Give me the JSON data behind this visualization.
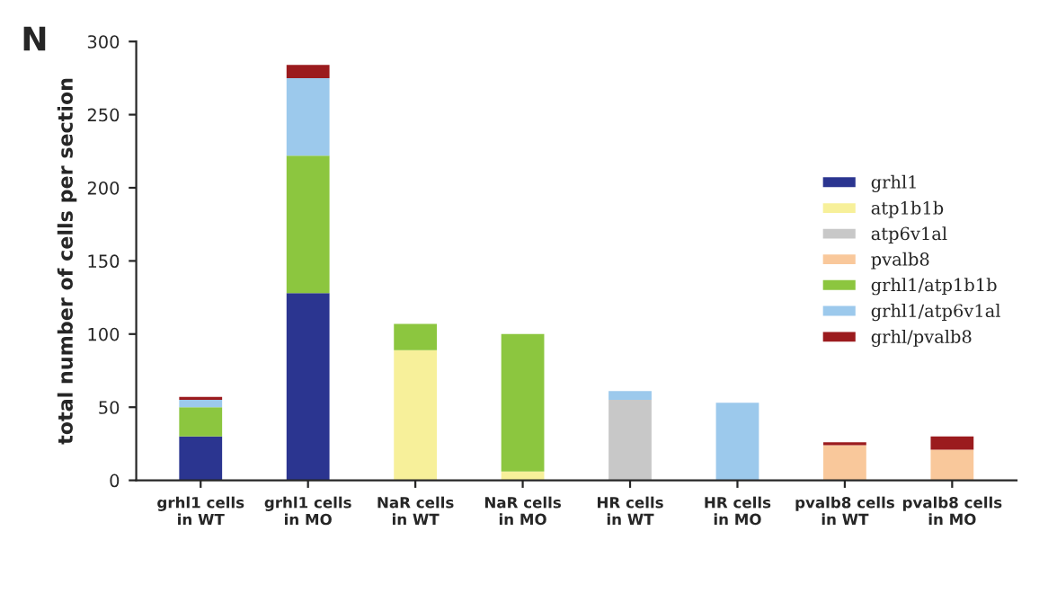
{
  "chart_data": {
    "type": "bar",
    "stacked": true,
    "ylabel": "total number of cells per section",
    "annotations": [
      "N"
    ],
    "categories": [
      "grhl1 cells\nin WT",
      "grhl1 cells\nin MO",
      "NaR cells\nin WT",
      "NaR cells\nin MO",
      "HR cells\nin WT",
      "HR cells\nin MO",
      "pvalb8 cells\nin WT",
      "pvalb8 cells\nin MO"
    ],
    "series": [
      {
        "name": "grhl1",
        "color": "#2b3590",
        "values": [
          30,
          128,
          0,
          0,
          0,
          0,
          0,
          0
        ]
      },
      {
        "name": "atp1b1b",
        "color": "#f7f09a",
        "values": [
          0,
          0,
          89,
          6,
          0,
          0,
          0,
          0
        ]
      },
      {
        "name": "atp6v1al",
        "color": "#c8c8c8",
        "values": [
          0,
          0,
          0,
          0,
          55,
          0,
          0,
          0
        ]
      },
      {
        "name": "pvalb8",
        "color": "#f9c89b",
        "values": [
          0,
          0,
          0,
          0,
          0,
          0,
          24,
          21
        ]
      },
      {
        "name": "grhl1/atp1b1b",
        "color": "#8cc63f",
        "values": [
          20,
          94,
          18,
          94,
          0,
          0,
          0,
          0
        ]
      },
      {
        "name": "grhl1/atp6v1al",
        "color": "#9cc9ec",
        "values": [
          5,
          53,
          0,
          0,
          6,
          53,
          0,
          0
        ]
      },
      {
        "name": "grhl/pvalb8",
        "color": "#9b1b1e",
        "values": [
          2,
          9,
          0,
          0,
          0,
          0,
          2,
          9
        ]
      }
    ],
    "ylim": [
      0,
      300
    ],
    "yticks": [
      0,
      50,
      100,
      150,
      200,
      250,
      300
    ],
    "grid": false,
    "legend": "right"
  }
}
